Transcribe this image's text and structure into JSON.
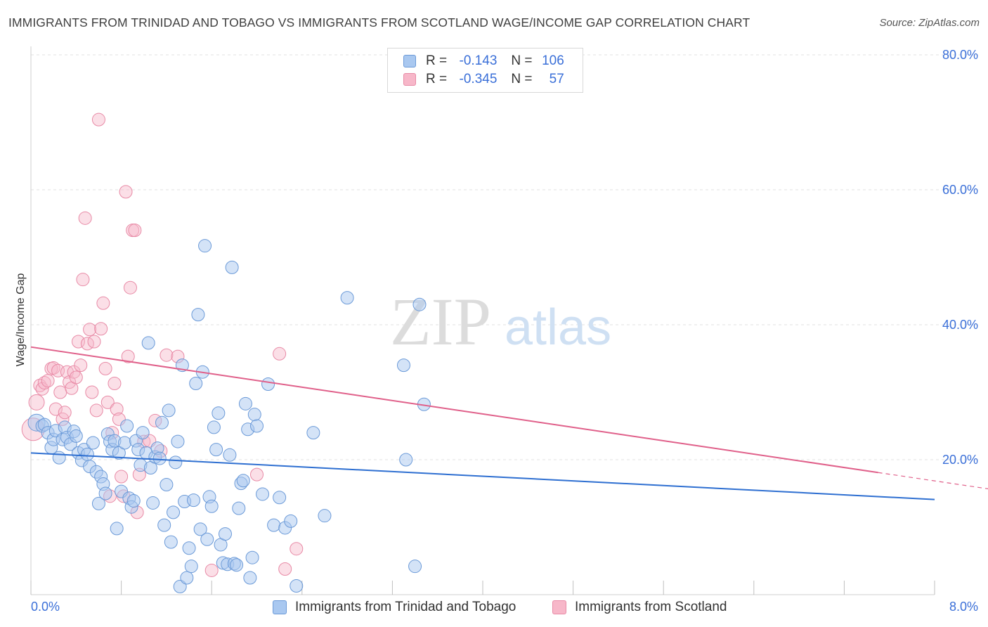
{
  "title": "IMMIGRANTS FROM TRINIDAD AND TOBAGO VS IMMIGRANTS FROM SCOTLAND WAGE/INCOME GAP CORRELATION CHART",
  "source": "Source: ZipAtlas.com",
  "watermark": {
    "zip": "ZIP",
    "atlas": "atlas"
  },
  "legend": {
    "rows": [
      {
        "r_label": "R =",
        "r_value": "-0.143",
        "n_label": "N =",
        "n_value": "106"
      },
      {
        "r_label": "R =",
        "r_value": "-0.345",
        "n_label": "N =",
        "n_value": "57"
      }
    ]
  },
  "bottom_legend": [
    "Immigrants from Trinidad and Tobago",
    "Immigrants from Scotland"
  ],
  "colors": {
    "blue_fill": "#a9c8f0",
    "blue_stroke": "#6b9ad8",
    "blue_line": "#2e6fd1",
    "pink_fill": "#f7b7c9",
    "pink_stroke": "#e88aa6",
    "pink_line": "#e0608a",
    "tick_label": "#3a6fd8",
    "grid": "#e2e2e2"
  },
  "chart_data": {
    "type": "scatter",
    "title": "IMMIGRANTS FROM TRINIDAD AND TOBAGO VS IMMIGRANTS FROM SCOTLAND WAGE/INCOME GAP CORRELATION CHART",
    "xlabel": "",
    "ylabel": "Wage/Income Gap",
    "xlim": [
      0,
      8
    ],
    "ylim": [
      0,
      80
    ],
    "x_tick_labels": [
      "0.0%",
      "8.0%"
    ],
    "y_ticks": [
      20,
      40,
      60,
      80
    ],
    "y_tick_labels": [
      "20.0%",
      "40.0%",
      "60.0%",
      "80.0%"
    ],
    "grid": true,
    "legend_position": "top-center",
    "series": [
      {
        "name": "Immigrants from Trinidad and Tobago",
        "color": "#a9c8f0",
        "trend": {
          "x": [
            0,
            8
          ],
          "y": [
            21.0,
            14.1
          ]
        },
        "points": [
          [
            0.05,
            25.5
          ],
          [
            0.1,
            25.0
          ],
          [
            0.12,
            25.2
          ],
          [
            0.15,
            24.0
          ],
          [
            0.18,
            21.8
          ],
          [
            0.2,
            23.0
          ],
          [
            0.22,
            24.3
          ],
          [
            0.25,
            20.3
          ],
          [
            0.28,
            23.0
          ],
          [
            0.3,
            24.8
          ],
          [
            0.32,
            23.3
          ],
          [
            0.35,
            22.3
          ],
          [
            0.38,
            24.2
          ],
          [
            0.4,
            23.5
          ],
          [
            0.42,
            21.0
          ],
          [
            0.45,
            19.9
          ],
          [
            0.47,
            21.5
          ],
          [
            0.5,
            20.8
          ],
          [
            0.52,
            19.0
          ],
          [
            0.55,
            22.5
          ],
          [
            0.58,
            18.2
          ],
          [
            0.6,
            13.5
          ],
          [
            0.62,
            17.5
          ],
          [
            0.64,
            16.4
          ],
          [
            0.66,
            15.0
          ],
          [
            0.68,
            23.8
          ],
          [
            0.7,
            22.7
          ],
          [
            0.72,
            21.5
          ],
          [
            0.74,
            22.8
          ],
          [
            0.76,
            9.8
          ],
          [
            0.78,
            21.0
          ],
          [
            0.8,
            15.3
          ],
          [
            0.83,
            22.5
          ],
          [
            0.85,
            25.0
          ],
          [
            0.87,
            14.3
          ],
          [
            0.89,
            13.0
          ],
          [
            0.91,
            13.9
          ],
          [
            0.93,
            22.8
          ],
          [
            0.95,
            21.5
          ],
          [
            0.97,
            19.2
          ],
          [
            0.99,
            24.0
          ],
          [
            1.02,
            21.0
          ],
          [
            1.04,
            37.3
          ],
          [
            1.06,
            18.8
          ],
          [
            1.08,
            13.6
          ],
          [
            1.1,
            20.4
          ],
          [
            1.12,
            21.7
          ],
          [
            1.14,
            20.2
          ],
          [
            1.16,
            25.5
          ],
          [
            1.18,
            10.3
          ],
          [
            1.2,
            16.3
          ],
          [
            1.22,
            27.3
          ],
          [
            1.24,
            7.8
          ],
          [
            1.26,
            12.2
          ],
          [
            1.28,
            19.6
          ],
          [
            1.3,
            22.7
          ],
          [
            1.32,
            1.2
          ],
          [
            1.34,
            34.0
          ],
          [
            1.36,
            13.8
          ],
          [
            1.38,
            2.5
          ],
          [
            1.4,
            6.9
          ],
          [
            1.42,
            4.2
          ],
          [
            1.44,
            14.0
          ],
          [
            1.46,
            31.3
          ],
          [
            1.48,
            41.5
          ],
          [
            1.5,
            9.7
          ],
          [
            1.52,
            33.0
          ],
          [
            1.54,
            51.7
          ],
          [
            1.56,
            8.2
          ],
          [
            1.58,
            14.5
          ],
          [
            1.6,
            13.1
          ],
          [
            1.62,
            24.8
          ],
          [
            1.64,
            21.5
          ],
          [
            1.66,
            26.9
          ],
          [
            1.68,
            7.4
          ],
          [
            1.7,
            4.7
          ],
          [
            1.72,
            9.0
          ],
          [
            1.74,
            4.5
          ],
          [
            1.76,
            20.7
          ],
          [
            1.78,
            48.5
          ],
          [
            1.8,
            4.6
          ],
          [
            1.82,
            4.4
          ],
          [
            1.84,
            12.8
          ],
          [
            1.86,
            16.5
          ],
          [
            1.88,
            16.9
          ],
          [
            1.9,
            28.3
          ],
          [
            1.92,
            24.5
          ],
          [
            1.94,
            2.5
          ],
          [
            1.96,
            5.5
          ],
          [
            1.98,
            26.7
          ],
          [
            2.0,
            25.0
          ],
          [
            2.05,
            14.9
          ],
          [
            2.1,
            31.2
          ],
          [
            2.15,
            10.3
          ],
          [
            2.2,
            14.4
          ],
          [
            2.25,
            9.9
          ],
          [
            2.3,
            10.9
          ],
          [
            2.35,
            1.3
          ],
          [
            2.5,
            24.0
          ],
          [
            2.6,
            11.7
          ],
          [
            2.8,
            44.0
          ],
          [
            3.3,
            34.0
          ],
          [
            3.32,
            20.0
          ],
          [
            3.4,
            4.2
          ],
          [
            3.44,
            43.0
          ],
          [
            3.48,
            28.2
          ]
        ]
      },
      {
        "name": "Immigrants from Scotland",
        "color": "#f7b7c9",
        "trend": {
          "x": [
            0,
            7.5
          ],
          "y": [
            36.7,
            18.1
          ]
        },
        "dashed_extension": {
          "x": [
            7.5,
            10
          ],
          "y": [
            18.1,
            11.9
          ]
        },
        "points": [
          [
            0.02,
            24.5
          ],
          [
            0.05,
            28.5
          ],
          [
            0.08,
            31.0
          ],
          [
            0.1,
            30.5
          ],
          [
            0.12,
            31.4
          ],
          [
            0.15,
            31.7
          ],
          [
            0.18,
            33.5
          ],
          [
            0.2,
            33.6
          ],
          [
            0.22,
            27.5
          ],
          [
            0.24,
            33.2
          ],
          [
            0.26,
            30.0
          ],
          [
            0.28,
            26.0
          ],
          [
            0.3,
            27.0
          ],
          [
            0.32,
            33.0
          ],
          [
            0.34,
            31.5
          ],
          [
            0.36,
            30.6
          ],
          [
            0.38,
            33.0
          ],
          [
            0.4,
            32.2
          ],
          [
            0.42,
            37.5
          ],
          [
            0.44,
            34.0
          ],
          [
            0.46,
            46.7
          ],
          [
            0.48,
            55.8
          ],
          [
            0.5,
            37.2
          ],
          [
            0.52,
            39.3
          ],
          [
            0.54,
            30.0
          ],
          [
            0.56,
            37.5
          ],
          [
            0.58,
            27.3
          ],
          [
            0.6,
            70.4
          ],
          [
            0.62,
            39.4
          ],
          [
            0.64,
            43.2
          ],
          [
            0.66,
            33.5
          ],
          [
            0.68,
            28.5
          ],
          [
            0.7,
            14.6
          ],
          [
            0.72,
            24.0
          ],
          [
            0.74,
            31.3
          ],
          [
            0.76,
            27.5
          ],
          [
            0.78,
            26.0
          ],
          [
            0.8,
            17.5
          ],
          [
            0.82,
            14.6
          ],
          [
            0.84,
            59.7
          ],
          [
            0.86,
            35.3
          ],
          [
            0.88,
            45.5
          ],
          [
            0.9,
            54.0
          ],
          [
            0.92,
            54.0
          ],
          [
            0.94,
            12.2
          ],
          [
            0.96,
            17.8
          ],
          [
            1.0,
            22.7
          ],
          [
            1.05,
            22.8
          ],
          [
            1.1,
            25.8
          ],
          [
            1.15,
            21.3
          ],
          [
            1.2,
            35.5
          ],
          [
            1.3,
            35.3
          ],
          [
            1.6,
            3.6
          ],
          [
            2.0,
            17.8
          ],
          [
            2.2,
            35.7
          ],
          [
            2.25,
            3.8
          ],
          [
            2.35,
            6.8
          ]
        ]
      }
    ]
  }
}
